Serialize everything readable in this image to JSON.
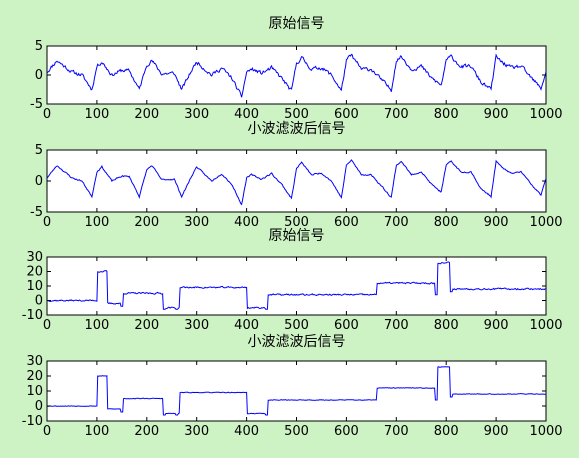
{
  "colors": {
    "background": "#cdf2c4",
    "axes": "#ffffff",
    "line": "#0000ff"
  },
  "chart_data": [
    {
      "type": "line",
      "title": "原始信号",
      "xlim": [
        0,
        1000
      ],
      "ylim": [
        -5,
        5
      ],
      "xticks": [
        0,
        100,
        200,
        300,
        400,
        500,
        600,
        700,
        800,
        900,
        1000
      ],
      "yticks": [
        -5,
        0,
        5
      ],
      "x": [
        0,
        20,
        50,
        70,
        90,
        100,
        110,
        130,
        150,
        165,
        185,
        200,
        210,
        230,
        255,
        270,
        290,
        300,
        310,
        330,
        350,
        370,
        390,
        400,
        410,
        430,
        450,
        470,
        490,
        500,
        510,
        530,
        550,
        570,
        590,
        600,
        610,
        630,
        650,
        670,
        690,
        700,
        710,
        730,
        750,
        770,
        790,
        800,
        810,
        830,
        850,
        870,
        890,
        900,
        910,
        930,
        950,
        970,
        990,
        1000
      ],
      "values": [
        0.5,
        2.5,
        0.5,
        0,
        -2.5,
        1.5,
        2.3,
        0,
        0.8,
        0.7,
        -2.5,
        1.8,
        2.5,
        0.2,
        0.3,
        -2.5,
        0.8,
        2.3,
        1.5,
        0,
        1.2,
        -0.5,
        -3.8,
        0.5,
        1,
        0.3,
        1.2,
        -0.5,
        -2.8,
        2,
        3,
        1,
        1.3,
        0,
        -2.7,
        2.5,
        3.4,
        1,
        1,
        -0.8,
        -2.6,
        2.5,
        3.2,
        1,
        1.5,
        -0.5,
        -1.8,
        2.5,
        3.2,
        1.4,
        1.5,
        -1.3,
        -2.5,
        3.2,
        2.3,
        1.2,
        1.5,
        -0.5,
        -2.3,
        0.5
      ],
      "noise": 0.55,
      "seed": 11
    },
    {
      "type": "line",
      "title": "小波滤波后信号",
      "xlim": [
        0,
        1000
      ],
      "ylim": [
        -5,
        5
      ],
      "xticks": [
        0,
        100,
        200,
        300,
        400,
        500,
        600,
        700,
        800,
        900,
        1000
      ],
      "yticks": [
        -5,
        0,
        5
      ],
      "x": [
        0,
        20,
        50,
        70,
        90,
        100,
        110,
        130,
        150,
        165,
        185,
        200,
        210,
        230,
        255,
        270,
        290,
        300,
        310,
        330,
        350,
        370,
        390,
        400,
        410,
        430,
        450,
        470,
        490,
        500,
        510,
        530,
        550,
        570,
        590,
        600,
        610,
        630,
        650,
        670,
        690,
        700,
        710,
        730,
        750,
        770,
        790,
        800,
        810,
        830,
        850,
        870,
        890,
        900,
        910,
        930,
        950,
        970,
        990,
        1000
      ],
      "values": [
        0.5,
        2.5,
        0.5,
        0,
        -2.5,
        1.5,
        2.3,
        0,
        0.8,
        0.7,
        -2.5,
        1.8,
        2.5,
        0.2,
        0.3,
        -2.5,
        0.8,
        2.3,
        1.5,
        0,
        1.2,
        -0.5,
        -3.8,
        0.5,
        1,
        0.3,
        1.2,
        -0.5,
        -2.8,
        2,
        3,
        1,
        1.3,
        0,
        -2.7,
        2.5,
        3.4,
        1,
        1,
        -0.8,
        -2.6,
        2.5,
        3.2,
        1,
        1.5,
        -0.5,
        -1.8,
        2.5,
        3.2,
        1.4,
        1.5,
        -1.3,
        -2.5,
        3.2,
        2.3,
        1.2,
        1.5,
        -0.5,
        -2.3,
        0.5
      ],
      "noise": 0.2,
      "seed": 23
    },
    {
      "type": "line",
      "title": "原始信号",
      "xlim": [
        0,
        1000
      ],
      "ylim": [
        -10,
        30
      ],
      "xticks": [
        0,
        100,
        200,
        300,
        400,
        500,
        600,
        700,
        800,
        900,
        1000
      ],
      "yticks": [
        -10,
        0,
        10,
        20,
        30
      ],
      "x": [
        0,
        100,
        100,
        120,
        120,
        150,
        150,
        235,
        235,
        265,
        265,
        400,
        400,
        440,
        440,
        660,
        660,
        780,
        780,
        810,
        810,
        1000
      ],
      "values": [
        0,
        0,
        20,
        20,
        -2,
        -2,
        5,
        5,
        -5,
        -5,
        9,
        9,
        -5,
        -5,
        4,
        4,
        12,
        12,
        26,
        26,
        8,
        8
      ],
      "spikes": [
        [
          150,
          -4
        ],
        [
          235,
          -6
        ],
        [
          260,
          -6
        ],
        [
          440,
          -6
        ],
        [
          780,
          4
        ],
        [
          810,
          6
        ]
      ],
      "noise": 0.9,
      "seed": 37
    },
    {
      "type": "line",
      "title": "小波滤波后信号",
      "xlim": [
        0,
        1000
      ],
      "ylim": [
        -10,
        30
      ],
      "xticks": [
        0,
        100,
        200,
        300,
        400,
        500,
        600,
        700,
        800,
        900,
        1000
      ],
      "yticks": [
        -10,
        0,
        10,
        20,
        30
      ],
      "x": [
        0,
        100,
        100,
        120,
        120,
        150,
        150,
        235,
        235,
        265,
        265,
        400,
        400,
        440,
        440,
        660,
        660,
        780,
        780,
        810,
        810,
        1000
      ],
      "values": [
        0,
        0,
        20,
        20,
        -2,
        -2,
        5,
        5,
        -5,
        -5,
        9,
        9,
        -5,
        -5,
        4,
        4,
        12,
        12,
        26,
        26,
        8,
        8
      ],
      "spikes": [
        [
          150,
          -4
        ],
        [
          235,
          -6
        ],
        [
          260,
          -6
        ],
        [
          440,
          -6
        ],
        [
          780,
          4
        ],
        [
          810,
          6
        ]
      ],
      "noise": 0.35,
      "seed": 53
    }
  ]
}
